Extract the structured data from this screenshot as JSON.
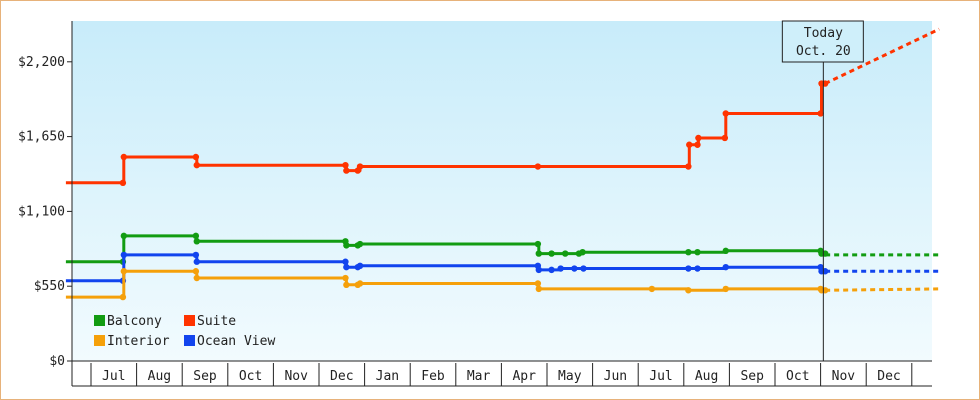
{
  "chart_data": {
    "type": "line",
    "title": "",
    "xlabel": "",
    "ylabel": "",
    "x_months": [
      "Jul",
      "Aug",
      "Sep",
      "Oct",
      "Nov",
      "Dec",
      "Jan",
      "Feb",
      "Mar",
      "Apr",
      "May",
      "Jun",
      "Jul",
      "Aug",
      "Sep",
      "Oct",
      "Nov",
      "Dec"
    ],
    "y_ticks": [
      "$0",
      "$550",
      "$1,100",
      "$1,650",
      "$2,200"
    ],
    "ylim": [
      0,
      2500
    ],
    "grid": false,
    "legend_position": "bottom-left",
    "today_label": [
      "Today",
      "Oct. 20"
    ],
    "today_x": 16.06,
    "background_gradient": [
      "#c8ecfa",
      "#f2fbfe"
    ],
    "series": [
      {
        "name": "Suite",
        "color": "#ff3300",
        "style": "step",
        "points": [
          [
            -0.55,
            1310
          ],
          [
            0.7,
            1310
          ],
          [
            0.72,
            1500
          ],
          [
            2.3,
            1500
          ],
          [
            2.32,
            1440
          ],
          [
            5.58,
            1440
          ],
          [
            5.6,
            1400
          ],
          [
            5.85,
            1400
          ],
          [
            5.9,
            1430
          ],
          [
            9.8,
            1430
          ],
          [
            13.1,
            1430
          ],
          [
            13.12,
            1590
          ],
          [
            13.3,
            1590
          ],
          [
            13.32,
            1640
          ],
          [
            13.9,
            1640
          ],
          [
            13.92,
            1820
          ],
          [
            16.0,
            1820
          ],
          [
            16.02,
            2040
          ],
          [
            16.1,
            2040
          ]
        ],
        "forecast": [
          [
            16.1,
            2040
          ],
          [
            18.6,
            2440
          ]
        ]
      },
      {
        "name": "Balcony",
        "color": "#129c12",
        "style": "step",
        "points": [
          [
            -0.55,
            730
          ],
          [
            0.7,
            730
          ],
          [
            0.72,
            920
          ],
          [
            2.3,
            920
          ],
          [
            2.32,
            880
          ],
          [
            5.58,
            880
          ],
          [
            5.6,
            850
          ],
          [
            5.85,
            850
          ],
          [
            5.9,
            860
          ],
          [
            9.8,
            860
          ],
          [
            9.82,
            790
          ],
          [
            10.1,
            790
          ],
          [
            10.4,
            790
          ],
          [
            10.7,
            790
          ],
          [
            10.78,
            800
          ],
          [
            13.1,
            800
          ],
          [
            13.3,
            800
          ],
          [
            13.92,
            810
          ],
          [
            16.0,
            810
          ],
          [
            16.02,
            790
          ],
          [
            16.1,
            790
          ]
        ],
        "forecast": [
          [
            16.1,
            780
          ],
          [
            18.6,
            780
          ]
        ]
      },
      {
        "name": "Ocean View",
        "color": "#1144ee",
        "style": "step",
        "points": [
          [
            -0.55,
            590
          ],
          [
            0.7,
            590
          ],
          [
            0.72,
            780
          ],
          [
            2.3,
            780
          ],
          [
            2.32,
            730
          ],
          [
            5.58,
            730
          ],
          [
            5.6,
            690
          ],
          [
            5.85,
            690
          ],
          [
            5.9,
            700
          ],
          [
            9.8,
            700
          ],
          [
            9.82,
            670
          ],
          [
            10.1,
            670
          ],
          [
            10.3,
            680
          ],
          [
            10.6,
            680
          ],
          [
            10.8,
            680
          ],
          [
            13.1,
            680
          ],
          [
            13.3,
            680
          ],
          [
            13.92,
            690
          ],
          [
            16.0,
            690
          ],
          [
            16.02,
            660
          ],
          [
            16.1,
            660
          ]
        ],
        "forecast": [
          [
            16.1,
            660
          ],
          [
            18.6,
            660
          ]
        ]
      },
      {
        "name": "Interior",
        "color": "#f5a00a",
        "style": "step",
        "points": [
          [
            -0.55,
            470
          ],
          [
            0.7,
            470
          ],
          [
            0.72,
            660
          ],
          [
            2.3,
            660
          ],
          [
            2.32,
            610
          ],
          [
            5.58,
            610
          ],
          [
            5.6,
            560
          ],
          [
            5.85,
            560
          ],
          [
            5.9,
            570
          ],
          [
            9.8,
            570
          ],
          [
            9.82,
            530
          ],
          [
            12.3,
            530
          ],
          [
            13.1,
            520
          ],
          [
            13.92,
            530
          ],
          [
            16.0,
            530
          ],
          [
            16.02,
            520
          ],
          [
            16.1,
            520
          ]
        ],
        "forecast": [
          [
            16.1,
            520
          ],
          [
            18.6,
            530
          ]
        ]
      }
    ]
  },
  "legend": [
    {
      "name": "Balcony",
      "color": "#129c12"
    },
    {
      "name": "Suite",
      "color": "#ff3300"
    },
    {
      "name": "Interior",
      "color": "#f5a00a"
    },
    {
      "name": "Ocean View",
      "color": "#1144ee"
    }
  ]
}
